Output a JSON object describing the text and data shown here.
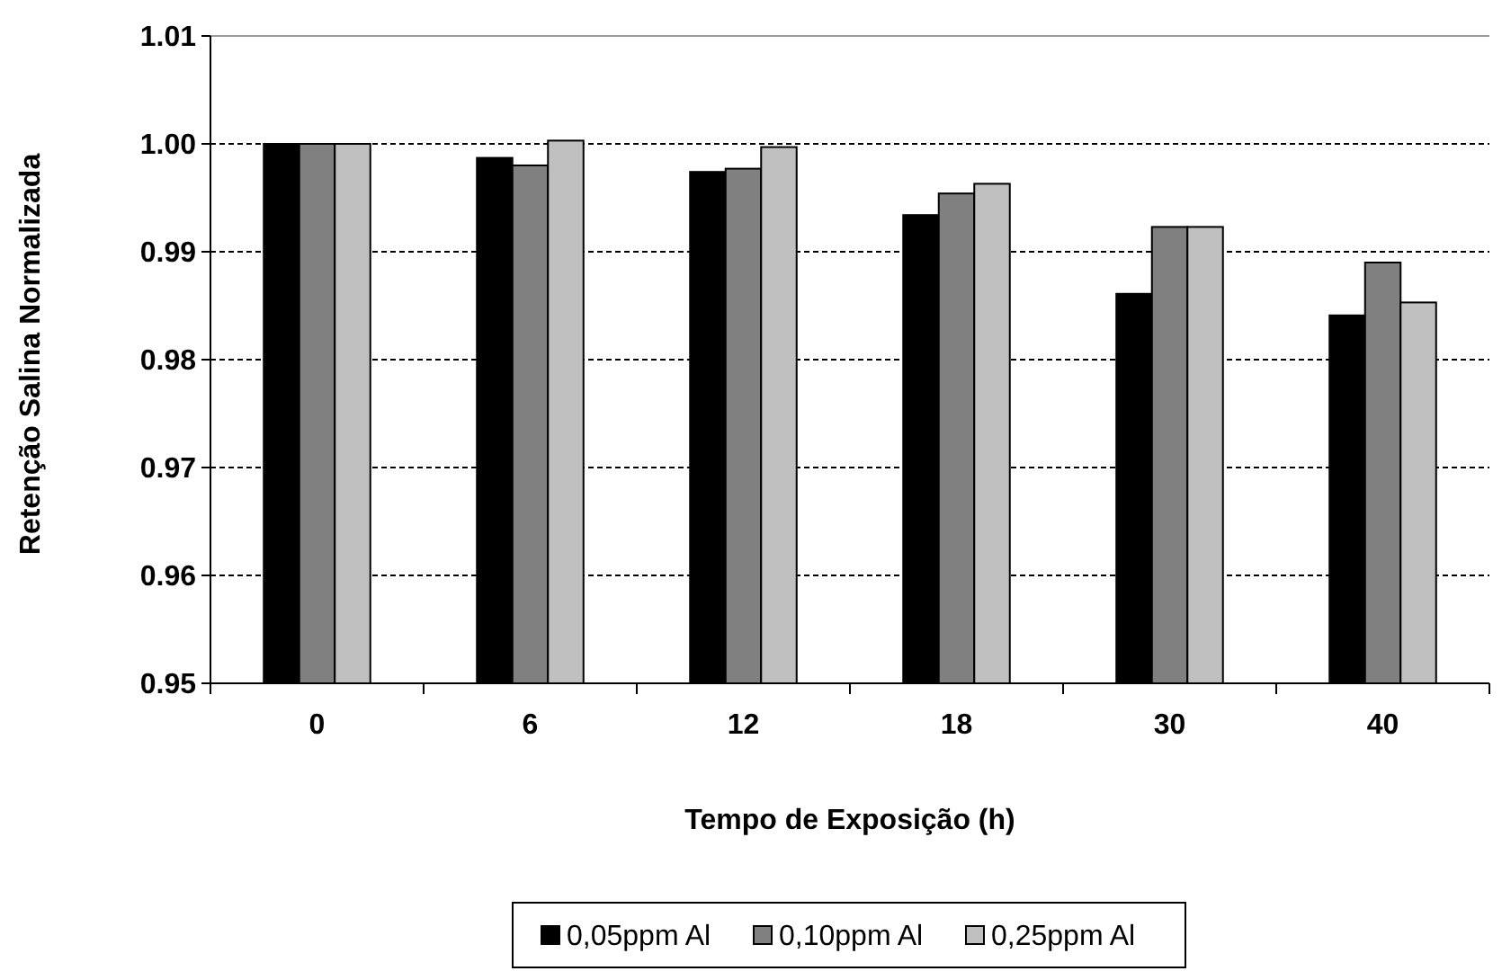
{
  "chart_data": {
    "type": "bar",
    "xlabel": "Tempo de Exposição (h)",
    "ylabel": "Retenção Salina Normalizada",
    "categories": [
      "0",
      "6",
      "12",
      "18",
      "30",
      "40"
    ],
    "series": [
      {
        "name": "0,05ppm Al",
        "color": "#000000",
        "values": [
          1.0,
          0.9987,
          0.9974,
          0.9934,
          0.9861,
          0.9841
        ]
      },
      {
        "name": "0,10ppm Al",
        "color": "#808080",
        "values": [
          1.0,
          0.998,
          0.9977,
          0.9954,
          0.9923,
          0.989
        ]
      },
      {
        "name": "0,25ppm Al",
        "color": "#c0c0c0",
        "values": [
          1.0,
          1.0003,
          0.9997,
          0.9963,
          0.9923,
          0.9853
        ]
      }
    ],
    "ylim": [
      0.95,
      1.01
    ],
    "yticks": [
      {
        "value": 0.95,
        "label": "0.95"
      },
      {
        "value": 0.96,
        "label": "0.96"
      },
      {
        "value": 0.97,
        "label": "0.97"
      },
      {
        "value": 0.98,
        "label": "0.98"
      },
      {
        "value": 0.99,
        "label": "0.99"
      },
      {
        "value": 1.0,
        "label": "1.00"
      },
      {
        "value": 1.01,
        "label": "1.01"
      }
    ],
    "grid": "y",
    "legend": "bottom"
  }
}
